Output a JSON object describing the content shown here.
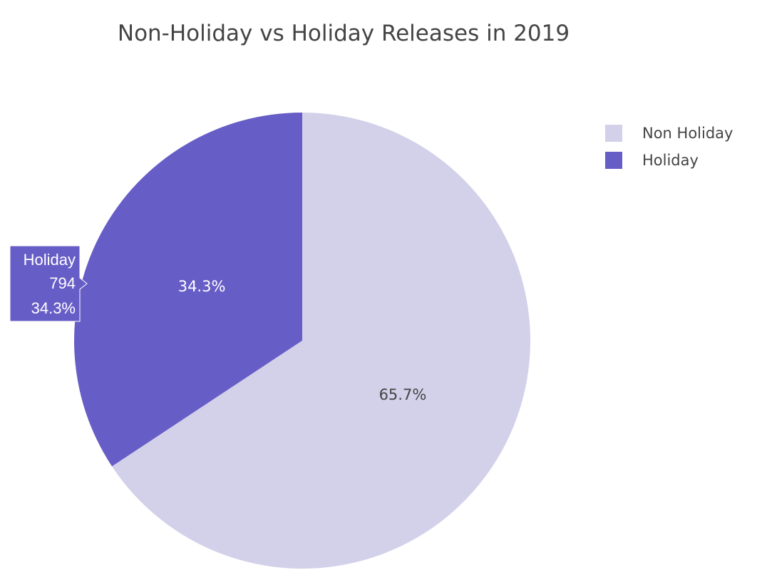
{
  "chart_data": {
    "type": "pie",
    "title": "Non-Holiday vs Holiday Releases in 2019",
    "labels": [
      "Non Holiday",
      "Holiday"
    ],
    "percent_labels": [
      "65.7%",
      "34.3%"
    ],
    "values": [
      1521,
      794
    ],
    "percentages": [
      65.7,
      34.3
    ],
    "colors": [
      "#d3d0ea",
      "#675dc6"
    ],
    "label_colors": [
      "#444444",
      "#ffffff"
    ],
    "direction": "clockwise",
    "start_angle_deg": 90,
    "legend": {
      "position": "top-right",
      "entries": [
        "Non Holiday",
        "Holiday"
      ]
    },
    "hover": {
      "label": "Holiday",
      "value": "794",
      "percent": "34.3%"
    }
  }
}
